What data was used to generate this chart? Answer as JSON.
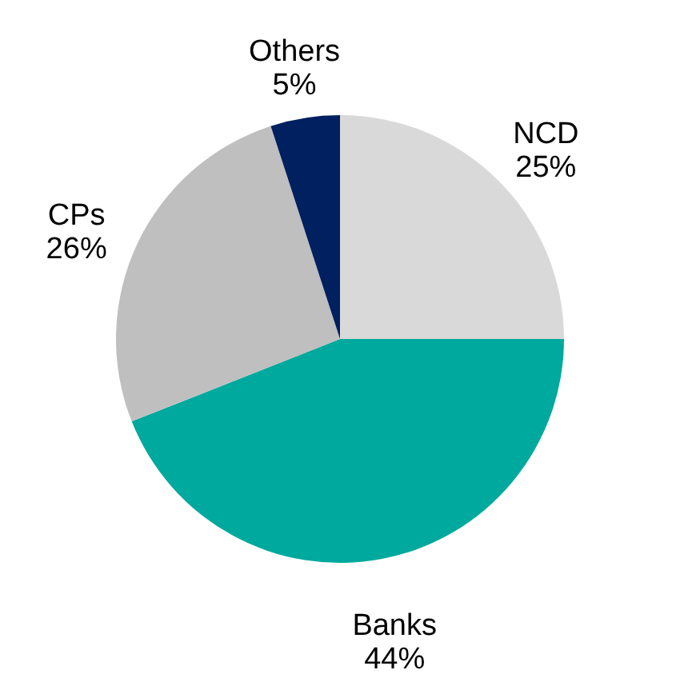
{
  "chart_data": {
    "type": "pie",
    "categories": [
      "NCD",
      "Banks",
      "CPs",
      "Others"
    ],
    "values": [
      25,
      44,
      26,
      5
    ],
    "colors": [
      "#d9d9d9",
      "#00a99d",
      "#bfbfbf",
      "#002060"
    ],
    "value_labels": [
      "25%",
      "44%",
      "26%",
      "5%"
    ]
  }
}
